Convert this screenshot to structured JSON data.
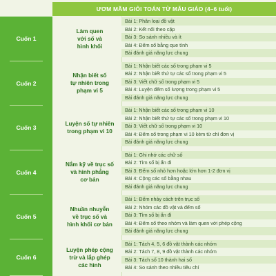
{
  "header": {
    "title": "ƯƠM MẦM GIỎI TOÁN TỪ MẪU GIÁO (4–6 tuổi)"
  },
  "books": [
    {
      "label": "Cuốn 1",
      "topic": [
        "Làm quen",
        "với số và",
        "hình khối"
      ],
      "lessons": [
        "Bài 1: Phân loại đồ vật",
        "Bài 2: Kết nối theo cặp",
        "Bài 3: So sánh nhiều và ít",
        "Bài 4: Đếm số bằng que tính",
        "Bài đánh giá năng lực chung"
      ]
    },
    {
      "label": "Cuốn 2",
      "topic": [
        "Nhận biết số",
        "tự nhiên trong",
        "phạm vi 5"
      ],
      "lessons": [
        "Bài 1: Nhận biết các số trong phạm vi 5",
        "Bài 2: Nhận biết thứ tự các số trong phạm vi 5",
        "Bài 3: Viết chữ số trong phạm vi 5",
        "Bài 4: Luyện đếm số lượng trong phạm vi 5",
        "Bài đánh giá năng lực chung"
      ]
    },
    {
      "label": "Cuốn 3",
      "topic": [
        "Luyện số tự nhiên",
        "trong phạm vi 10"
      ],
      "lessons": [
        "Bài 1: Nhận biết các số trong phạm vi 10",
        "Bài 2: Nhận biết thứ tự các số trong phạm vi 10",
        "Bài 3: Viết chữ số trong phạm vi 10",
        "Bài 4: Đếm số trong phạm vi 10 kèm từ chỉ đơn vị",
        "Bài đánh giá năng lực chung"
      ]
    },
    {
      "label": "Cuốn 4",
      "topic": [
        "Nắm kỹ về trục số",
        "và hình phẳng",
        "cơ bản"
      ],
      "lessons": [
        "Bài 1: Ghi nhớ các chữ số",
        "Bài 2: Tìm số bị ẩn đi",
        "Bài 3: Đếm số nhỏ hơn hoặc lớn hơn 1-2 đơn vị",
        "Bài 4: Cộng các số bằng nhau",
        "Bài đánh giá năng lực chung"
      ]
    },
    {
      "label": "Cuốn 5",
      "topic": [
        "Nhuần nhuyễn",
        "về trục số và",
        "hình khối cơ bản"
      ],
      "lessons": [
        "Bài 1: Đếm nhảy cách trên trục số",
        "Bài 2: Nhóm các đồ vật và đếm số",
        "Bài 3: Tìm số bị ẩn đi",
        "Bài 4: Đếm số theo nhóm và làm quen với phép cộng",
        "Bài đánh giá năng lực chung"
      ]
    },
    {
      "label": "Cuốn 6",
      "topic": [
        "Luyện phép cộng",
        "trừ và lắp ghép",
        "các hình"
      ],
      "lessons": [
        "Bài 1: Tách 4, 5, 6 đồ vật thành các nhóm",
        "Bài 2: Tách 7, 8, 9 đồ vật thành các nhóm",
        "Bài 3: Tách số 10 thành hai số",
        "Bài 4: So sánh theo nhiều tiêu chí"
      ]
    }
  ],
  "colors": {
    "header": "#8ec63f",
    "book_column": "#5bb236",
    "topic_text": "#2b6f1e"
  }
}
